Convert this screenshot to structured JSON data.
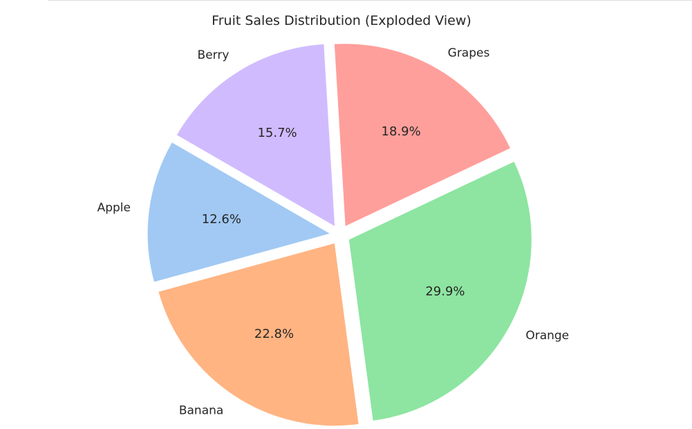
{
  "chart_data": {
    "type": "pie",
    "title": "Fruit Sales Distribution (Exploded View)",
    "slices": [
      {
        "label": "Apple",
        "percent": 12.6,
        "percent_label": "12.6%",
        "color": "#a1c9f4"
      },
      {
        "label": "Banana",
        "percent": 22.8,
        "percent_label": "22.8%",
        "color": "#ffb482"
      },
      {
        "label": "Orange",
        "percent": 29.9,
        "percent_label": "29.9%",
        "color": "#8de5a1"
      },
      {
        "label": "Grapes",
        "percent": 18.9,
        "percent_label": "18.9%",
        "color": "#ff9f9b"
      },
      {
        "label": "Berry",
        "percent": 15.7,
        "percent_label": "15.7%",
        "color": "#d0bbff"
      }
    ],
    "start_angle_deg": 150,
    "direction": "counterclockwise",
    "exploded": true
  }
}
